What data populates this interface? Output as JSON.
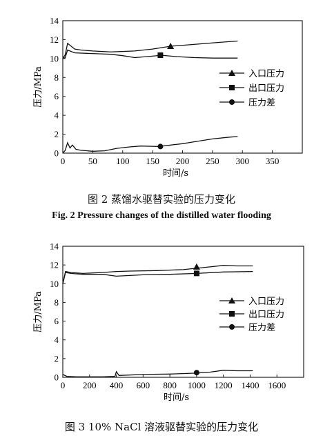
{
  "chart_data": [
    {
      "type": "line",
      "title": "",
      "xlabel": "时间/s",
      "ylabel": "压力/MPa",
      "xlim": [
        0,
        400
      ],
      "ylim": [
        0,
        14
      ],
      "x_ticks": [
        0,
        50,
        100,
        150,
        200,
        250,
        300,
        350
      ],
      "y_ticks": [
        0,
        2,
        4,
        6,
        8,
        10,
        12,
        14
      ],
      "grid": false,
      "legend_position": "right",
      "series": [
        {
          "name": "入口压力",
          "marker": "triangle",
          "x": [
            0,
            4,
            8,
            14,
            20,
            30,
            50,
            80,
            120,
            150,
            180,
            210,
            240,
            270,
            292
          ],
          "y": [
            10.0,
            10.4,
            11.6,
            11.3,
            11.0,
            10.9,
            10.8,
            10.7,
            10.8,
            11.0,
            11.3,
            11.45,
            11.6,
            11.75,
            11.85
          ],
          "marker_at": [
            180,
            11.3
          ]
        },
        {
          "name": "出口压力",
          "marker": "square",
          "x": [
            0,
            4,
            8,
            14,
            20,
            40,
            60,
            80,
            100,
            120,
            140,
            165,
            190,
            220,
            250,
            275,
            292
          ],
          "y": [
            10.0,
            10.1,
            10.9,
            10.75,
            10.6,
            10.55,
            10.5,
            10.45,
            10.3,
            10.1,
            10.2,
            10.35,
            10.2,
            10.1,
            10.05,
            10.05,
            10.05
          ],
          "marker_at": [
            163,
            10.35
          ]
        },
        {
          "name": "压力差",
          "marker": "circle",
          "x": [
            0,
            4,
            8,
            12,
            16,
            22,
            30,
            50,
            70,
            90,
            110,
            130,
            160,
            180,
            200,
            220,
            250,
            280,
            292
          ],
          "y": [
            0.0,
            0.3,
            1.1,
            0.55,
            0.85,
            0.4,
            0.3,
            0.2,
            0.25,
            0.5,
            0.65,
            0.75,
            0.7,
            0.85,
            1.0,
            1.2,
            1.5,
            1.7,
            1.75
          ],
          "marker_at": [
            163,
            0.7
          ]
        }
      ]
    },
    {
      "type": "line",
      "title": "",
      "xlabel": "时间/s",
      "ylabel": "压力/MPa",
      "xlim": [
        0,
        1800
      ],
      "ylim": [
        0,
        14
      ],
      "x_ticks": [
        0,
        200,
        400,
        600,
        800,
        1000,
        1200,
        1400,
        1600
      ],
      "y_ticks": [
        0,
        2,
        4,
        6,
        8,
        10,
        12,
        14
      ],
      "grid": false,
      "legend_position": "right",
      "series": [
        {
          "name": "入口压力",
          "marker": "triangle",
          "x": [
            0,
            20,
            60,
            150,
            300,
            400,
            500,
            700,
            900,
            1100,
            1200,
            1300,
            1420
          ],
          "y": [
            10.0,
            11.3,
            11.2,
            11.1,
            11.2,
            11.3,
            11.35,
            11.4,
            11.5,
            11.8,
            11.95,
            11.9,
            11.9
          ],
          "marker_at": [
            1000,
            11.8
          ]
        },
        {
          "name": "出口压力",
          "marker": "square",
          "x": [
            0,
            20,
            60,
            150,
            300,
            400,
            600,
            800,
            1000,
            1200,
            1420
          ],
          "y": [
            10.0,
            11.2,
            11.1,
            11.0,
            11.0,
            10.8,
            10.95,
            11.0,
            11.1,
            11.25,
            11.3
          ],
          "marker_at": [
            1000,
            11.1
          ]
        },
        {
          "name": "压力差",
          "marker": "circle",
          "x": [
            0,
            30,
            100,
            300,
            390,
            400,
            420,
            600,
            800,
            1000,
            1100,
            1200,
            1300,
            1420
          ],
          "y": [
            0.3,
            0.1,
            0.05,
            0.05,
            0.1,
            0.6,
            0.2,
            0.3,
            0.35,
            0.45,
            0.55,
            0.75,
            0.7,
            0.7
          ],
          "marker_at": [
            1000,
            0.5
          ]
        }
      ]
    }
  ],
  "captions": {
    "fig2_cn": "图 2   蒸馏水驱替实验的压力变化",
    "fig2_en": "Fig. 2   Pressure changes of the distilled water flooding",
    "fig3_cn": "图 3   10% NaCl 溶液驱替实验的压力变化"
  }
}
